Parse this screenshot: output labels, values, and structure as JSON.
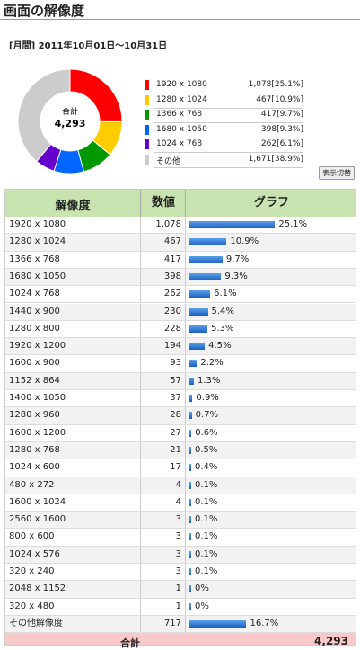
{
  "header": {
    "title": "画面の解像度",
    "period": "[月間] 2011年10月01日～10月31日"
  },
  "chart_data": {
    "type": "pie",
    "donut": true,
    "center_label": "合計",
    "center_value": "4,293",
    "categories": [
      "1920 x 1080",
      "1280 x 1024",
      "1366 x 768",
      "1680 x 1050",
      "1024 x 768",
      "その他"
    ],
    "values": [
      1078,
      467,
      417,
      398,
      262,
      1671
    ],
    "value_labels": [
      "1,078",
      "467",
      "417",
      "398",
      "262",
      "1,671"
    ],
    "percent_labels": [
      "[25.1%]",
      "[10.9%]",
      "[9.7%]",
      "[9.3%]",
      "[6.1%]",
      "[38.9%]"
    ],
    "colors": [
      "#ff0000",
      "#ffcc00",
      "#009900",
      "#0066ff",
      "#6600cc",
      "#cccccc"
    ]
  },
  "toggle_button": "表示切替",
  "table": {
    "columns": [
      "解像度",
      "数値",
      "グラフ"
    ],
    "rows": [
      {
        "resolution": "1920 x 1080",
        "count": 1078,
        "count_label": "1,078",
        "percent": 25.1,
        "percent_label": "25.1%"
      },
      {
        "resolution": "1280 x 1024",
        "count": 467,
        "percent": 10.9,
        "percent_label": "10.9%"
      },
      {
        "resolution": "1366 x 768",
        "count": 417,
        "percent": 9.7,
        "percent_label": "9.7%"
      },
      {
        "resolution": "1680 x 1050",
        "count": 398,
        "percent": 9.3,
        "percent_label": "9.3%"
      },
      {
        "resolution": "1024 x 768",
        "count": 262,
        "percent": 6.1,
        "percent_label": "6.1%"
      },
      {
        "resolution": "1440 x 900",
        "count": 230,
        "percent": 5.4,
        "percent_label": "5.4%"
      },
      {
        "resolution": "1280 x 800",
        "count": 228,
        "percent": 5.3,
        "percent_label": "5.3%"
      },
      {
        "resolution": "1920 x 1200",
        "count": 194,
        "percent": 4.5,
        "percent_label": "4.5%"
      },
      {
        "resolution": "1600 x 900",
        "count": 93,
        "percent": 2.2,
        "percent_label": "2.2%"
      },
      {
        "resolution": "1152 x 864",
        "count": 57,
        "percent": 1.3,
        "percent_label": "1.3%"
      },
      {
        "resolution": "1400 x 1050",
        "count": 37,
        "percent": 0.9,
        "percent_label": "0.9%"
      },
      {
        "resolution": "1280 x 960",
        "count": 28,
        "percent": 0.7,
        "percent_label": "0.7%"
      },
      {
        "resolution": "1600 x 1200",
        "count": 27,
        "percent": 0.6,
        "percent_label": "0.6%"
      },
      {
        "resolution": "1280 x 768",
        "count": 21,
        "percent": 0.5,
        "percent_label": "0.5%"
      },
      {
        "resolution": "1024 x 600",
        "count": 17,
        "percent": 0.4,
        "percent_label": "0.4%"
      },
      {
        "resolution": "480 x 272",
        "count": 4,
        "percent": 0.1,
        "percent_label": "0.1%"
      },
      {
        "resolution": "1600 x 1024",
        "count": 4,
        "percent": 0.1,
        "percent_label": "0.1%"
      },
      {
        "resolution": "2560 x 1600",
        "count": 3,
        "percent": 0.1,
        "percent_label": "0.1%"
      },
      {
        "resolution": "800 x 600",
        "count": 3,
        "percent": 0.1,
        "percent_label": "0.1%"
      },
      {
        "resolution": "1024 x 576",
        "count": 3,
        "percent": 0.1,
        "percent_label": "0.1%"
      },
      {
        "resolution": "320 x 240",
        "count": 3,
        "percent": 0.1,
        "percent_label": "0.1%"
      },
      {
        "resolution": "2048 x 1152",
        "count": 1,
        "percent": 0,
        "percent_label": "0%"
      },
      {
        "resolution": "320 x 480",
        "count": 1,
        "percent": 0,
        "percent_label": "0%"
      },
      {
        "resolution": "その他解像度",
        "count": 717,
        "percent": 16.7,
        "percent_label": "16.7%"
      }
    ],
    "total_label": "合計",
    "total_value": "4,293"
  }
}
